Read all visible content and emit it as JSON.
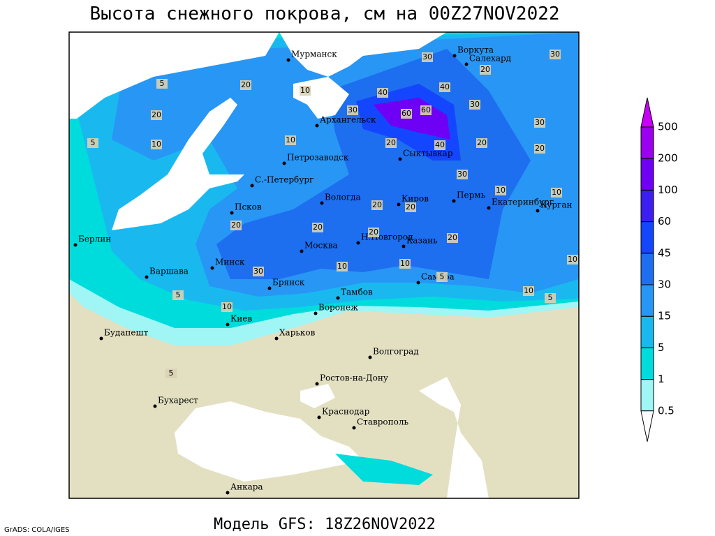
{
  "header": {
    "title": "Высота снежного покрова, см на 00Z27NOV2022"
  },
  "footer": {
    "model": "Модель GFS: 18Z26NOV2022",
    "credit": "GrADS: COLA/IGES"
  },
  "cities": [
    "Мурманск",
    "Воркута",
    "Салехард",
    "Архангельск",
    "Петрозаводск",
    "Сыктывкар",
    "С.-Петербург",
    "Вологда",
    "Киров",
    "Пермь",
    "Екатеринбург",
    "Курган",
    "Псков",
    "Берлин",
    "Н.Новгород",
    "Казань",
    "Москва",
    "Минск",
    "Варшава",
    "Самара",
    "Брянск",
    "Тамбов",
    "Киев",
    "Воронеж",
    "Будапешт",
    "Харьков",
    "Волгоград",
    "Ростов-на-Дону",
    "Бухарест",
    "Краснодар",
    "Ставрополь",
    "Анкара"
  ],
  "contour_labels": [
    30,
    20,
    30,
    40,
    30,
    60,
    60,
    40,
    30,
    30,
    20,
    20,
    40,
    20,
    30,
    10,
    10,
    20,
    20,
    20,
    20,
    20,
    20,
    10,
    30,
    10,
    10,
    5,
    5,
    10,
    5,
    5,
    10,
    20,
    5,
    20,
    10,
    5,
    10,
    10
  ],
  "colorbar": {
    "levels": [
      0.5,
      1,
      5,
      15,
      30,
      45,
      60,
      100,
      200,
      500
    ],
    "colors": [
      "#ffffff",
      "#a0f5f5",
      "#00dcdc",
      "#19b9f0",
      "#2896f5",
      "#1e6ef0",
      "#1446ff",
      "#3c1ef0",
      "#6e00f5",
      "#9b00f0",
      "#c800f5"
    ]
  }
}
